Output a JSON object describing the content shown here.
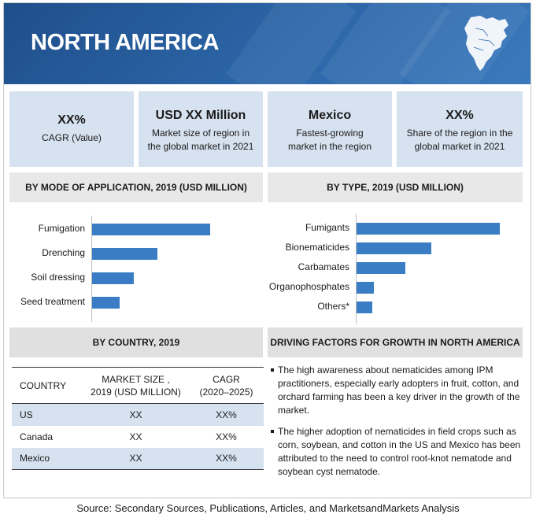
{
  "header": {
    "title": "NORTH AMERICA",
    "icon": "north-america-map-icon"
  },
  "kpis": [
    {
      "value": "XX%",
      "label": "CAGR (Value)"
    },
    {
      "value": "USD XX Million",
      "label": "Market size of region in the global market in 2021"
    },
    {
      "value": "Mexico",
      "label": "Fastest-growing market in the region"
    },
    {
      "value": "XX%",
      "label": "Share of the region in the global market in 2021"
    }
  ],
  "mode_chart": {
    "title": "BY MODE OF APPLICATION, 2019 (USD MILLION)",
    "chart_data": {
      "type": "bar",
      "orientation": "horizontal",
      "categories": [
        "Fumigation",
        "Drenching",
        "Soil dressing",
        "Seed treatment"
      ],
      "values": [
        100,
        55,
        35,
        23
      ],
      "title": "BY MODE OF APPLICATION, 2019 (USD MILLION)",
      "xlim": [
        0,
        100
      ],
      "color": "#3b7dc4"
    }
  },
  "type_chart": {
    "title": "BY TYPE, 2019 (USD MILLION)",
    "chart_data": {
      "type": "bar",
      "orientation": "horizontal",
      "categories": [
        "Fumigants",
        "Bionematicides",
        "Carbamates",
        "Organophosphates",
        "Others*"
      ],
      "values": [
        100,
        52,
        34,
        12,
        11
      ],
      "title": "BY TYPE, 2019 (USD MILLION)",
      "xlim": [
        0,
        100
      ],
      "color": "#3b7dc4"
    }
  },
  "country": {
    "title": "BY COUNTRY, 2019",
    "headers": [
      "COUNTRY",
      "MARKET SIZE ,\n2019 (USD MILLION)",
      "CAGR\n(2020–2025)"
    ],
    "rows": [
      [
        "US",
        "XX",
        "XX%"
      ],
      [
        "Canada",
        "XX",
        "XX%"
      ],
      [
        "Mexico",
        "XX",
        "XX%"
      ]
    ]
  },
  "drivers": {
    "title": "DRIVING FACTORS FOR GROWTH IN NORTH AMERICA",
    "items": [
      "The high awareness about nematicides among IPM practitioners, especially early adopters in fruit, cotton, and orchard farming has been a key driver in the growth of the market.",
      "The higher adoption of nematicides in field crops such as corn, soybean, and cotton in the US and Mexico has been attributed to the need to control root-knot nematode and soybean cyst nematode."
    ]
  },
  "source": "Source: Secondary Sources, Publications, Articles, and MarketsandMarkets Analysis"
}
